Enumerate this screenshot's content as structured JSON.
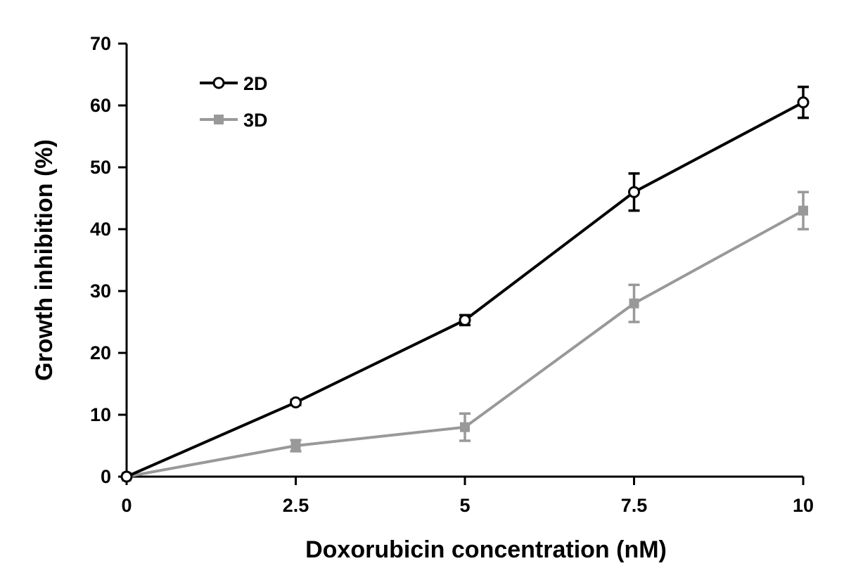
{
  "chart_data": {
    "type": "line",
    "title": "",
    "xlabel": "Doxorubicin concentration (nM)",
    "ylabel": "Growth inhibition (%)",
    "xlim": [
      0,
      10
    ],
    "ylim": [
      0,
      70
    ],
    "grid": false,
    "legend_position": "top-left",
    "x": [
      0,
      2.5,
      5,
      7.5,
      10
    ],
    "x_tick_labels": [
      "0",
      "2.5",
      "5",
      "7.5",
      "10"
    ],
    "y_ticks": [
      0,
      10,
      20,
      30,
      40,
      50,
      60,
      70
    ],
    "y_tick_labels": [
      "0",
      "10",
      "20",
      "30",
      "40",
      "50",
      "60",
      "70"
    ],
    "series": [
      {
        "name": "2D",
        "color": "#000000",
        "marker": "open-circle",
        "values": [
          0,
          12,
          25.3,
          46,
          60.5
        ],
        "errors": [
          0,
          0.4,
          0.8,
          3,
          2.5
        ]
      },
      {
        "name": "3D",
        "color": "#999999",
        "marker": "filled-square",
        "values": [
          0,
          5,
          8,
          28,
          43
        ],
        "errors": [
          0,
          0.9,
          2.2,
          3,
          3
        ]
      }
    ]
  }
}
